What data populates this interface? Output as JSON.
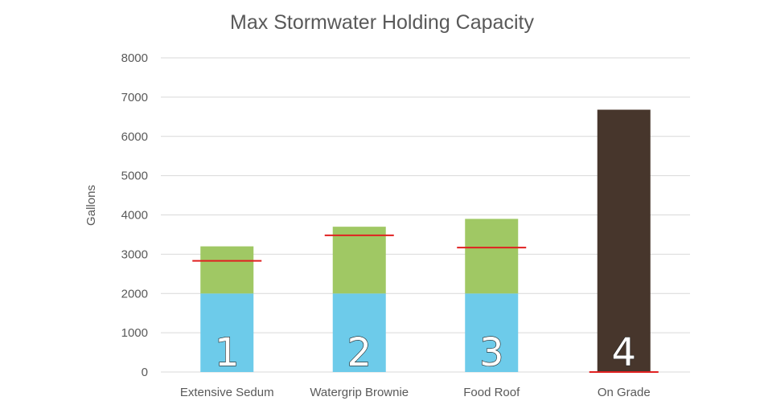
{
  "chart_data": {
    "type": "bar",
    "stacked": true,
    "title": "Max Stormwater Holding Capacity",
    "xlabel": "",
    "ylabel": "Gallons",
    "ylim": [
      0,
      8000
    ],
    "yticks": [
      0,
      1000,
      2000,
      3000,
      4000,
      5000,
      6000,
      7000,
      8000
    ],
    "grid": true,
    "categories": [
      "Extensive Sedum",
      "Watergrip Brownie",
      "Food Roof",
      "On Grade"
    ],
    "bar_numbers": [
      "1",
      "2",
      "3",
      "4"
    ],
    "series": [
      {
        "values": [
          2000,
          2000,
          2000,
          0
        ],
        "color": "#6DCBEA"
      },
      {
        "values": [
          1200,
          1700,
          1900,
          0
        ],
        "color": "#A0C864"
      },
      {
        "values": [
          0,
          0,
          0,
          6680
        ],
        "color": "#47362C"
      }
    ],
    "marker_lines": {
      "values": [
        2830,
        3480,
        3170,
        0
      ],
      "color": "#E02020"
    },
    "colors": {
      "grid": "#D9D9D9",
      "text": "#595959"
    }
  }
}
